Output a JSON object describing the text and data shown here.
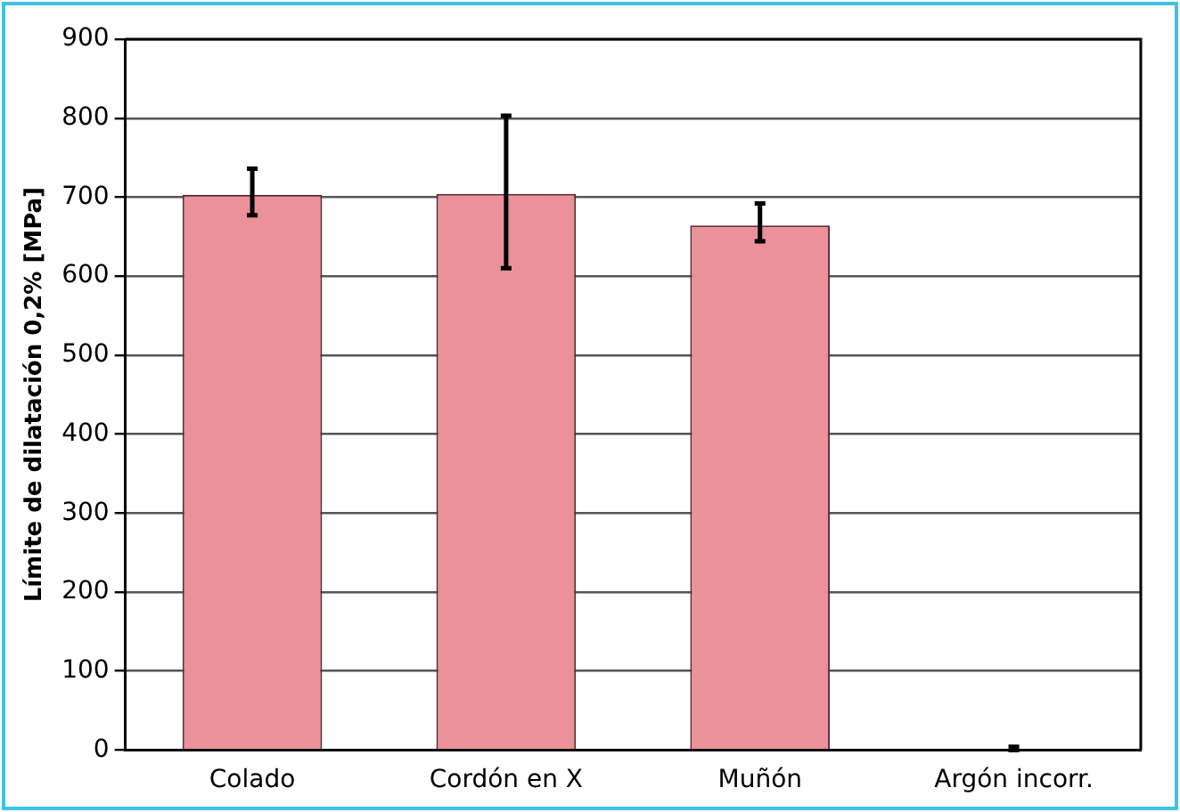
{
  "chart_data": {
    "type": "bar",
    "ylabel": "Límite de dilatación 0,2% [MPa]",
    "categories": [
      "Colado",
      "Cordón en X",
      "Muñón",
      "Argón incorr."
    ],
    "values": [
      703,
      704,
      664,
      0
    ],
    "errors": [
      [
        677,
        736
      ],
      [
        610,
        803
      ],
      [
        644,
        692
      ],
      [
        0,
        4
      ]
    ],
    "color": "#eb9199",
    "ylim": [
      0,
      900
    ],
    "yticks": [
      0,
      100,
      200,
      300,
      400,
      500,
      600,
      700,
      800,
      900
    ],
    "grid": "y",
    "legend": false
  }
}
